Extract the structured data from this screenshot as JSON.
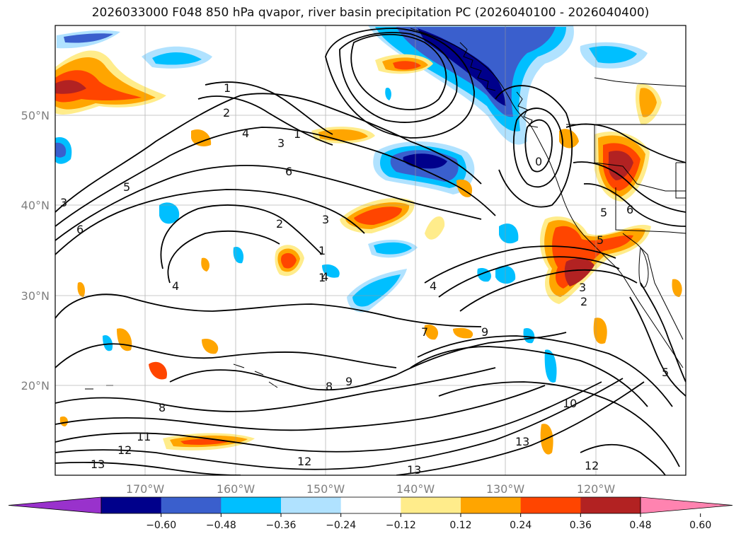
{
  "title": "2026033000 F048 850 hPa qvapor, river basin precipitation PC (2026040100 - 2026040400)",
  "map": {
    "lat_labels": [
      "50°N",
      "40°N",
      "30°N",
      "20°N"
    ],
    "lon_labels": [
      "170°W",
      "160°W",
      "150°W",
      "140°W",
      "130°W",
      "120°W"
    ],
    "extent": {
      "lon_min": -180,
      "lon_max": -110,
      "lat_min": 10,
      "lat_max": 60
    },
    "contour_labels": [
      "1",
      "2",
      "4",
      "3",
      "1",
      "6",
      "5",
      "3",
      "6",
      "2",
      "3",
      "1",
      "1",
      "4",
      "4",
      "4",
      "5",
      "6",
      "5",
      "3",
      "2",
      "7",
      "9",
      "8",
      "9",
      "8",
      "10",
      "11",
      "12",
      "13",
      "12",
      "13",
      "13",
      "12",
      "5",
      "0"
    ]
  },
  "colorbar": {
    "ticks": [
      "−0.60",
      "−0.48",
      "−0.36",
      "−0.24",
      "−0.12",
      "0.12",
      "0.24",
      "0.36",
      "0.48",
      "0.60"
    ],
    "colors": [
      "#9932cc",
      "#00008b",
      "#3a5fcd",
      "#00bfff",
      "#b0e2ff",
      "#ffffff",
      "#ffec8b",
      "#ffa500",
      "#ff4500",
      "#b22222",
      "#ff83b0"
    ]
  },
  "chart_data": {
    "type": "heatmap",
    "title": "2026033000 F048 850 hPa qvapor, river basin precipitation PC (2026040100 - 2026040400)",
    "x_ticks": [
      "170°W",
      "160°W",
      "150°W",
      "140°W",
      "130°W",
      "120°W"
    ],
    "y_ticks": [
      "50°N",
      "40°N",
      "30°N",
      "20°N"
    ],
    "xlim": [
      -180,
      -110
    ],
    "ylim": [
      10,
      60
    ],
    "colorbar_levels": [
      -0.6,
      -0.48,
      -0.36,
      -0.24,
      -0.12,
      0.12,
      0.24,
      0.36,
      0.48,
      0.6
    ],
    "contour_field": "850 hPa qvapor (g/kg)",
    "contour_levels_labeled": [
      0,
      1,
      2,
      3,
      4,
      5,
      6,
      7,
      8,
      9,
      10,
      11,
      12,
      13
    ]
  }
}
